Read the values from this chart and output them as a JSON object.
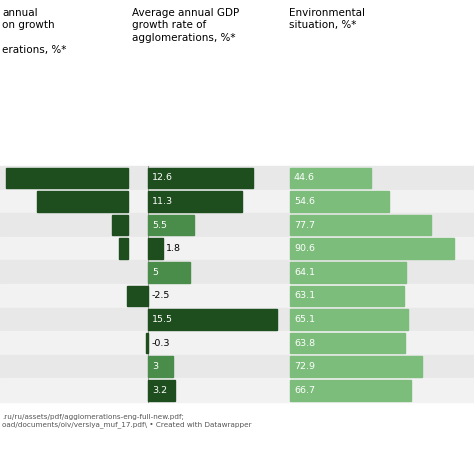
{
  "col1_header": "annual\non growth\n\nerations, %*",
  "col2_header": "Average annual GDP\ngrowth rate of\nagglomerations, %*",
  "col3_header": "Environmental\nsituation, %*",
  "col1_values": [
    100,
    75,
    13,
    7,
    0,
    0,
    0,
    0,
    0,
    0
  ],
  "col1_max": 105,
  "col2_values": [
    12.6,
    11.3,
    5.5,
    1.8,
    5.0,
    -2.5,
    15.5,
    -0.3,
    3.0,
    3.2
  ],
  "col2_max": 16.5,
  "col3_values": [
    44.6,
    54.6,
    77.7,
    90.6,
    64.1,
    63.1,
    65.1,
    63.8,
    72.9,
    66.7
  ],
  "col3_max": 100,
  "col2_labels": [
    "12.6",
    "11.3",
    "5.5",
    "1.8",
    "5",
    "-2.5",
    "15.5",
    "-0.3",
    "3",
    "3.2"
  ],
  "col3_labels": [
    "44.6",
    "54.6",
    "77.7",
    "90.6",
    "64.1",
    "63.1",
    "65.1",
    "63.8",
    "72.9",
    "66.7"
  ],
  "dark_green": "#1e4d1e",
  "medium_green": "#4a8c4a",
  "light_green": "#7cbd7c",
  "col2_colors": [
    "#1e4d1e",
    "#1e4d1e",
    "#4a8c4a",
    "#1e4d1e",
    "#4a8c4a",
    "#1e4d1e",
    "#1e4d1e",
    "#1e4d1e",
    "#4a8c4a",
    "#1e4d1e"
  ],
  "col3_colors": [
    "#7cbd7c",
    "#7cbd7c",
    "#7cbd7c",
    "#7cbd7c",
    "#7cbd7c",
    "#7cbd7c",
    "#7cbd7c",
    "#7cbd7c",
    "#7cbd7c",
    "#7cbd7c"
  ],
  "row_bg_odd": "#e8e8e8",
  "row_bg_even": "#f2f2f2",
  "footer_text": ".ru/ru/assets/pdf/agglomerations-eng-full-new.pdf;\noad/documents/oiv/versiya_muf_17.pdf\\ • Created with Datawrapper"
}
